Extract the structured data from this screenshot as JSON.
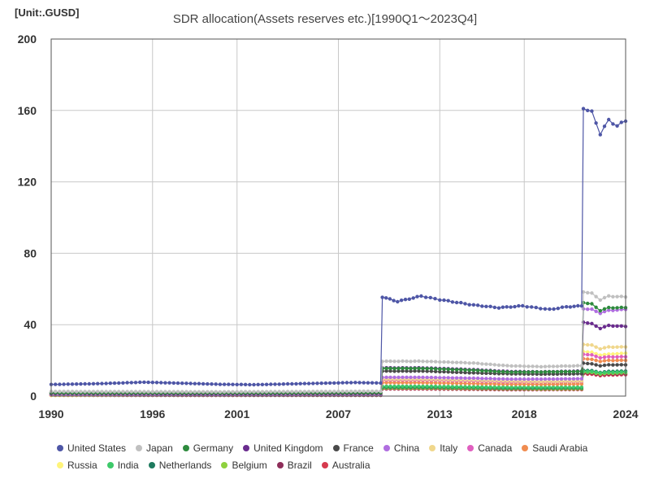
{
  "unit_label": "[Unit:.GUSD]",
  "chart_data": {
    "type": "line",
    "title": "SDR allocation(Assets reserves etc.)[1990Q1～2023Q4]",
    "xlabel": "",
    "ylabel": "",
    "xlim": [
      1990,
      2024
    ],
    "ylim": [
      0,
      200
    ],
    "x_ticks": [
      1990,
      1996,
      2001,
      2007,
      2013,
      2018,
      2024
    ],
    "y_ticks": [
      0,
      40,
      80,
      120,
      160,
      200
    ],
    "grid": true,
    "legend_position": "bottom",
    "series": [
      {
        "name": "United States",
        "color": "#4e56a6",
        "points": [
          [
            1990,
            6.5
          ],
          [
            1993,
            7.0
          ],
          [
            1995.5,
            7.8
          ],
          [
            2000,
            6.6
          ],
          [
            2002,
            6.4
          ],
          [
            2005,
            7.0
          ],
          [
            2008,
            7.6
          ],
          [
            2009.5,
            7.3
          ],
          [
            2009.6,
            55.5
          ],
          [
            2010.5,
            53.0
          ],
          [
            2011.9,
            56.0
          ],
          [
            2013,
            54.0
          ],
          [
            2015,
            51.0
          ],
          [
            2016.5,
            49.5
          ],
          [
            2017.9,
            50.5
          ],
          [
            2019.5,
            48.5
          ],
          [
            2020.5,
            50.0
          ],
          [
            2021.4,
            50.5
          ],
          [
            2021.5,
            161.5
          ],
          [
            2022,
            159.0
          ],
          [
            2022.5,
            147.0
          ],
          [
            2023,
            154.5
          ],
          [
            2023.5,
            151.5
          ],
          [
            2024,
            154.0
          ]
        ]
      },
      {
        "name": "Japan",
        "color": "#c0c0c0",
        "points": [
          [
            1990,
            2.6
          ],
          [
            2000,
            2.4
          ],
          [
            2009.5,
            2.7
          ],
          [
            2009.6,
            19.5
          ],
          [
            2012,
            19.5
          ],
          [
            2015,
            18.5
          ],
          [
            2017,
            17.0
          ],
          [
            2019,
            16.5
          ],
          [
            2021.4,
            17.0
          ],
          [
            2021.5,
            58.5
          ],
          [
            2022,
            57.5
          ],
          [
            2022.5,
            54.0
          ],
          [
            2023,
            56.0
          ],
          [
            2024,
            55.5
          ]
        ]
      },
      {
        "name": "Germany",
        "color": "#2e8b3e",
        "points": [
          [
            1990,
            1.9
          ],
          [
            2000,
            1.8
          ],
          [
            2009.5,
            2.0
          ],
          [
            2009.6,
            15.5
          ],
          [
            2012,
            15.5
          ],
          [
            2015,
            14.5
          ],
          [
            2017,
            13.5
          ],
          [
            2019,
            13.5
          ],
          [
            2021.4,
            13.8
          ],
          [
            2021.5,
            52.5
          ],
          [
            2022,
            51.5
          ],
          [
            2022.5,
            48.0
          ],
          [
            2023,
            49.5
          ],
          [
            2024,
            49.5
          ]
        ]
      },
      {
        "name": "United Kingdom",
        "color": "#6a2c8e",
        "points": [
          [
            1990,
            1.8
          ],
          [
            2000,
            1.7
          ],
          [
            2009.5,
            1.9
          ],
          [
            2009.6,
            15.8
          ],
          [
            2012,
            15.8
          ],
          [
            2015,
            14.8
          ],
          [
            2017,
            13.8
          ],
          [
            2019,
            13.6
          ],
          [
            2021.4,
            14.0
          ],
          [
            2021.5,
            41.5
          ],
          [
            2022,
            40.5
          ],
          [
            2022.5,
            38.0
          ],
          [
            2023,
            39.5
          ],
          [
            2024,
            39.0
          ]
        ]
      },
      {
        "name": "France",
        "color": "#4a4a4a",
        "points": [
          [
            1990,
            1.5
          ],
          [
            2000,
            1.4
          ],
          [
            2009.5,
            1.5
          ],
          [
            2009.6,
            14.0
          ],
          [
            2012,
            14.0
          ],
          [
            2015,
            13.0
          ],
          [
            2017,
            12.5
          ],
          [
            2019,
            12.3
          ],
          [
            2021.4,
            12.5
          ],
          [
            2021.5,
            18.5
          ],
          [
            2022,
            18.0
          ],
          [
            2022.5,
            17.0
          ],
          [
            2023,
            17.5
          ],
          [
            2024,
            17.5
          ]
        ]
      },
      {
        "name": "China",
        "color": "#b06ee0",
        "points": [
          [
            1990,
            0.8
          ],
          [
            2000,
            0.7
          ],
          [
            2009.5,
            0.8
          ],
          [
            2009.6,
            10.5
          ],
          [
            2012,
            10.5
          ],
          [
            2015,
            10.0
          ],
          [
            2017,
            9.5
          ],
          [
            2019,
            9.5
          ],
          [
            2021.4,
            9.7
          ],
          [
            2021.5,
            49.0
          ],
          [
            2022,
            48.5
          ],
          [
            2022.5,
            46.5
          ],
          [
            2023,
            48.0
          ],
          [
            2024,
            48.5
          ]
        ]
      },
      {
        "name": "Italy",
        "color": "#f0d78c",
        "points": [
          [
            1990,
            1.2
          ],
          [
            2000,
            1.1
          ],
          [
            2009.5,
            1.2
          ],
          [
            2009.6,
            9.5
          ],
          [
            2012,
            9.5
          ],
          [
            2015,
            9.0
          ],
          [
            2017,
            8.5
          ],
          [
            2019,
            8.3
          ],
          [
            2021.4,
            8.5
          ],
          [
            2021.5,
            29.0
          ],
          [
            2022,
            28.5
          ],
          [
            2022.5,
            26.5
          ],
          [
            2023,
            27.5
          ],
          [
            2024,
            27.5
          ]
        ]
      },
      {
        "name": "Canada",
        "color": "#e05fbf",
        "points": [
          [
            1990,
            1.1
          ],
          [
            2000,
            1.0
          ],
          [
            2009.5,
            1.1
          ],
          [
            2009.6,
            9.0
          ],
          [
            2012,
            9.0
          ],
          [
            2015,
            8.5
          ],
          [
            2017,
            8.0
          ],
          [
            2019,
            8.0
          ],
          [
            2021.4,
            8.2
          ],
          [
            2021.5,
            23.5
          ],
          [
            2022,
            23.0
          ],
          [
            2022.5,
            21.5
          ],
          [
            2023,
            22.0
          ],
          [
            2024,
            22.0
          ]
        ]
      },
      {
        "name": "Saudi Arabia",
        "color": "#f08c50",
        "points": [
          [
            1990,
            0.6
          ],
          [
            2000,
            0.6
          ],
          [
            2009.5,
            0.7
          ],
          [
            2009.6,
            7.5
          ],
          [
            2012,
            7.5
          ],
          [
            2015,
            7.0
          ],
          [
            2017,
            6.7
          ],
          [
            2019,
            6.6
          ],
          [
            2021.4,
            6.8
          ],
          [
            2021.5,
            21.0
          ],
          [
            2022,
            20.5
          ],
          [
            2022.5,
            19.5
          ],
          [
            2023,
            20.0
          ],
          [
            2024,
            20.0
          ]
        ]
      },
      {
        "name": "Russia",
        "color": "#fff47a",
        "points": [
          [
            1990,
            0.3
          ],
          [
            2000,
            0.9
          ],
          [
            2009.5,
            1.0
          ],
          [
            2009.6,
            8.5
          ],
          [
            2012,
            8.5
          ],
          [
            2015,
            8.0
          ],
          [
            2017,
            7.5
          ],
          [
            2019,
            7.5
          ],
          [
            2021.4,
            7.7
          ],
          [
            2021.5,
            25.0
          ],
          [
            2022,
            24.5
          ],
          [
            2022.5,
            23.0
          ],
          [
            2023,
            23.5
          ],
          [
            2024,
            24.0
          ]
        ]
      },
      {
        "name": "India",
        "color": "#3ec96a",
        "points": [
          [
            1990,
            0.9
          ],
          [
            2000,
            0.9
          ],
          [
            2009.5,
            1.0
          ],
          [
            2009.6,
            5.5
          ],
          [
            2012,
            5.5
          ],
          [
            2015,
            5.2
          ],
          [
            2017,
            5.0
          ],
          [
            2019,
            5.0
          ],
          [
            2021.4,
            5.0
          ],
          [
            2021.5,
            14.0
          ],
          [
            2022,
            13.7
          ],
          [
            2022.5,
            13.0
          ],
          [
            2023,
            13.3
          ],
          [
            2024,
            13.5
          ]
        ]
      },
      {
        "name": "Netherlands",
        "color": "#1e7a5e",
        "points": [
          [
            1990,
            0.8
          ],
          [
            2000,
            0.8
          ],
          [
            2009.5,
            0.8
          ],
          [
            2009.6,
            5.0
          ],
          [
            2012,
            5.0
          ],
          [
            2015,
            4.8
          ],
          [
            2017,
            4.5
          ],
          [
            2019,
            4.5
          ],
          [
            2021.4,
            4.6
          ],
          [
            2021.5,
            14.5
          ],
          [
            2022,
            14.2
          ],
          [
            2022.5,
            13.3
          ],
          [
            2023,
            13.8
          ],
          [
            2024,
            14.0
          ]
        ]
      },
      {
        "name": "Belgium",
        "color": "#8ed13e",
        "points": [
          [
            1990,
            0.7
          ],
          [
            2000,
            0.7
          ],
          [
            2009.5,
            0.7
          ],
          [
            2009.6,
            4.5
          ],
          [
            2012,
            4.5
          ],
          [
            2015,
            4.3
          ],
          [
            2017,
            4.1
          ],
          [
            2019,
            4.0
          ],
          [
            2021.4,
            4.1
          ],
          [
            2021.5,
            13.5
          ],
          [
            2022,
            13.2
          ],
          [
            2022.5,
            12.4
          ],
          [
            2023,
            12.8
          ],
          [
            2024,
            13.0
          ]
        ]
      },
      {
        "name": "Brazil",
        "color": "#8e2e5a",
        "points": [
          [
            1990,
            0.4
          ],
          [
            2000,
            0.4
          ],
          [
            2009.5,
            0.4
          ],
          [
            2009.6,
            4.2
          ],
          [
            2012,
            4.2
          ],
          [
            2015,
            4.0
          ],
          [
            2017,
            3.8
          ],
          [
            2019,
            3.8
          ],
          [
            2021.4,
            3.9
          ],
          [
            2021.5,
            13.0
          ],
          [
            2022,
            12.7
          ],
          [
            2022.5,
            12.0
          ],
          [
            2023,
            12.3
          ],
          [
            2024,
            12.5
          ]
        ]
      },
      {
        "name": "Australia",
        "color": "#d63a4e",
        "points": [
          [
            1990,
            0.6
          ],
          [
            2000,
            0.5
          ],
          [
            2009.5,
            0.6
          ],
          [
            2009.6,
            4.0
          ],
          [
            2012,
            4.0
          ],
          [
            2015,
            3.8
          ],
          [
            2017,
            3.6
          ],
          [
            2019,
            3.6
          ],
          [
            2021.4,
            3.7
          ],
          [
            2021.5,
            12.5
          ],
          [
            2022,
            12.2
          ],
          [
            2022.5,
            11.5
          ],
          [
            2023,
            11.8
          ],
          [
            2024,
            12.0
          ]
        ]
      }
    ]
  }
}
